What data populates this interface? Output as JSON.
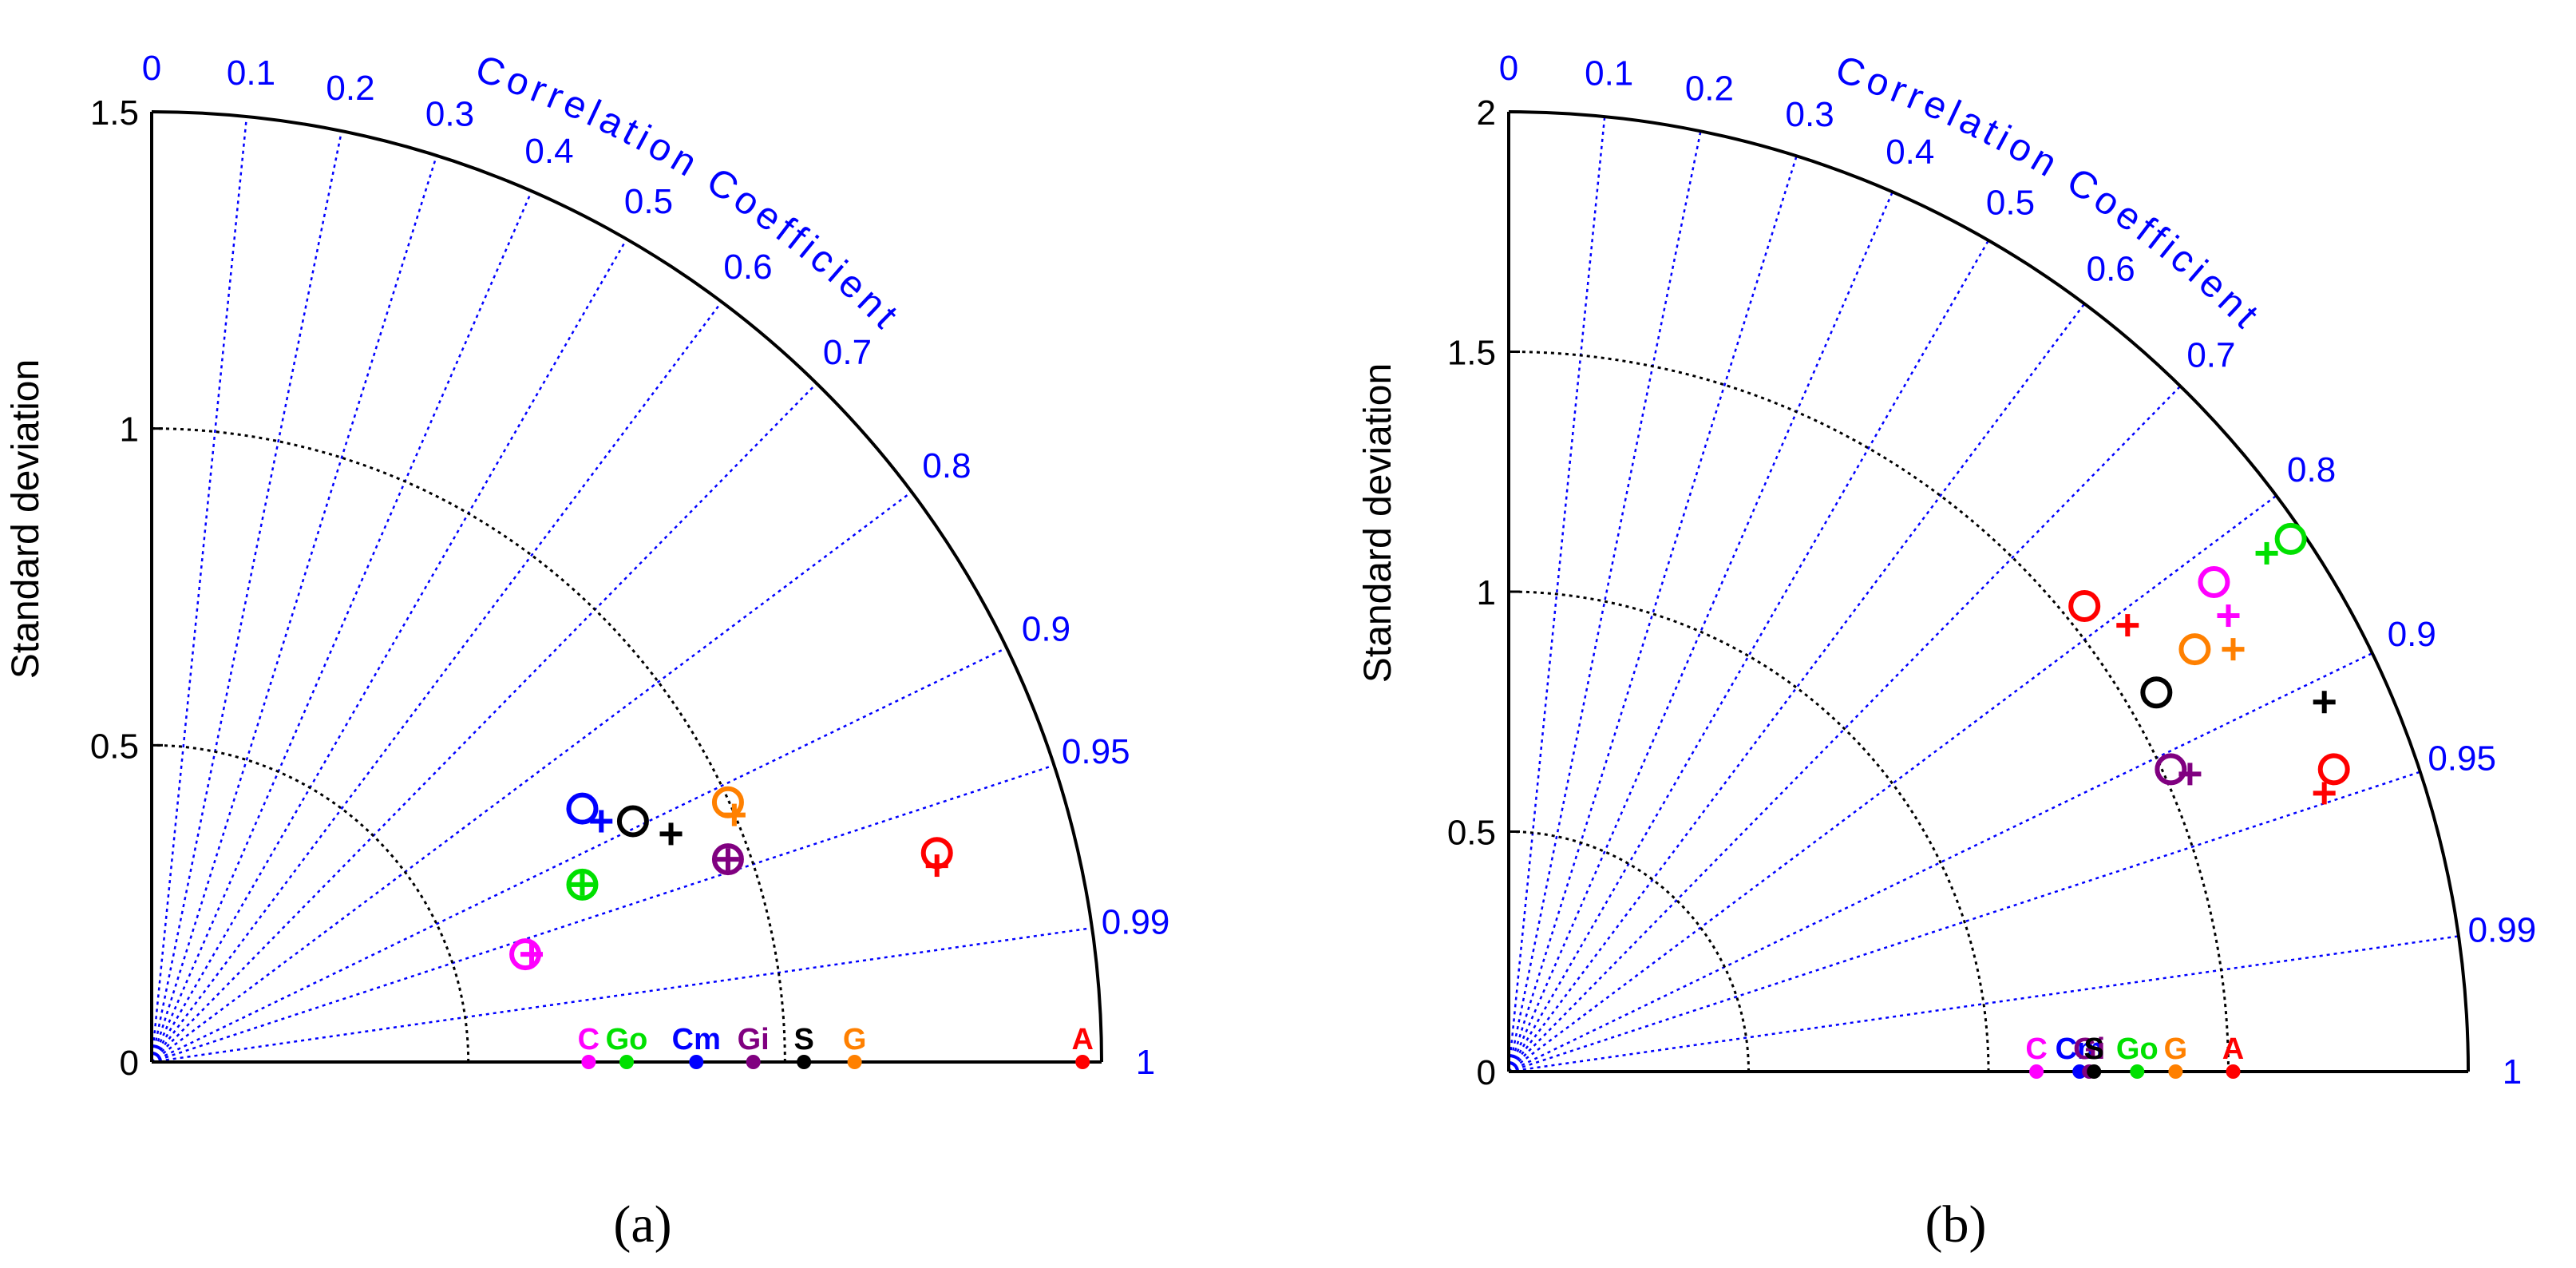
{
  "chart_data": [
    {
      "type": "taylor",
      "panel_label": "(a)",
      "ylabel": "Standard deviation",
      "correlation_label": "Correlation Coefficient",
      "std_max": 1.5,
      "std_ticks": [
        "0",
        "0.5",
        "1",
        "1.5"
      ],
      "std_tick_values": [
        0,
        0.5,
        1,
        1.5
      ],
      "rms_arcs": [
        0.5,
        1.0
      ],
      "corr_ticks": [
        0,
        0.1,
        0.2,
        0.3,
        0.4,
        0.5,
        0.6,
        0.7,
        0.8,
        0.9,
        0.95,
        0.99,
        1
      ],
      "corr_tick_labels": [
        "0",
        "0.1",
        "0.2",
        "0.3",
        "0.4",
        "0.5",
        "0.6",
        "0.7",
        "0.8",
        "0.9",
        "0.95",
        "0.99",
        "1"
      ],
      "reference_points": [
        {
          "label": "C",
          "std": 0.69,
          "color": "#ff00ff"
        },
        {
          "label": "Go",
          "std": 0.75,
          "color": "#00e000"
        },
        {
          "label": "Cm",
          "std": 0.86,
          "color": "#0000ff"
        },
        {
          "label": "Gi",
          "std": 0.95,
          "color": "#800080"
        },
        {
          "label": "S",
          "std": 1.03,
          "color": "#000000"
        },
        {
          "label": "G",
          "std": 1.11,
          "color": "#ff8000"
        },
        {
          "label": "A",
          "std": 1.47,
          "color": "#ff0000"
        }
      ],
      "circles": [
        {
          "x": 0.68,
          "y": 0.4,
          "color": "#0000ff"
        },
        {
          "x": 0.76,
          "y": 0.38,
          "color": "#000000"
        },
        {
          "x": 0.91,
          "y": 0.41,
          "color": "#ff8000"
        },
        {
          "x": 0.91,
          "y": 0.32,
          "color": "#800080"
        },
        {
          "x": 0.68,
          "y": 0.28,
          "color": "#00e000"
        },
        {
          "x": 0.59,
          "y": 0.17,
          "color": "#ff00ff"
        },
        {
          "x": 1.24,
          "y": 0.33,
          "color": "#ff0000"
        }
      ],
      "crosses": [
        {
          "x": 0.71,
          "y": 0.38,
          "color": "#0000ff"
        },
        {
          "x": 0.82,
          "y": 0.36,
          "color": "#000000"
        },
        {
          "x": 0.92,
          "y": 0.39,
          "color": "#ff8000"
        },
        {
          "x": 0.91,
          "y": 0.32,
          "color": "#800080"
        },
        {
          "x": 0.68,
          "y": 0.28,
          "color": "#00e000"
        },
        {
          "x": 0.6,
          "y": 0.17,
          "color": "#ff00ff"
        },
        {
          "x": 1.24,
          "y": 0.31,
          "color": "#ff0000"
        }
      ]
    },
    {
      "type": "taylor",
      "panel_label": "(b)",
      "ylabel": "Standard deviation",
      "correlation_label": "Correlation Coefficient",
      "std_max": 2,
      "std_ticks": [
        "0",
        "0.5",
        "1",
        "1.5",
        "2"
      ],
      "std_tick_values": [
        0,
        0.5,
        1,
        1.5,
        2
      ],
      "rms_arcs": [
        0.5,
        1.0,
        1.5
      ],
      "corr_ticks": [
        0,
        0.1,
        0.2,
        0.3,
        0.4,
        0.5,
        0.6,
        0.7,
        0.8,
        0.9,
        0.95,
        0.99,
        1
      ],
      "corr_tick_labels": [
        "0",
        "0.1",
        "0.2",
        "0.3",
        "0.4",
        "0.5",
        "0.6",
        "0.7",
        "0.8",
        "0.9",
        "0.95",
        "0.99",
        "1"
      ],
      "reference_points": [
        {
          "label": "C",
          "std": 1.1,
          "color": "#ff00ff"
        },
        {
          "label": "Cm",
          "std": 1.19,
          "color": "#0000ff"
        },
        {
          "label": "Gi",
          "std": 1.21,
          "color": "#800080"
        },
        {
          "label": "S",
          "std": 1.22,
          "color": "#000000"
        },
        {
          "label": "Go",
          "std": 1.31,
          "color": "#00e000"
        },
        {
          "label": "G",
          "std": 1.39,
          "color": "#ff8000"
        },
        {
          "label": "A",
          "std": 1.51,
          "color": "#ff0000"
        }
      ],
      "circles": [
        {
          "x": 1.2,
          "y": 0.97,
          "color": "#ff0000"
        },
        {
          "x": 1.47,
          "y": 1.02,
          "color": "#ff00ff"
        },
        {
          "x": 1.43,
          "y": 0.88,
          "color": "#ff8000"
        },
        {
          "x": 1.35,
          "y": 0.79,
          "color": "#000000"
        },
        {
          "x": 1.38,
          "y": 0.63,
          "color": "#800080"
        },
        {
          "x": 1.63,
          "y": 1.11,
          "color": "#00e000"
        },
        {
          "x": 1.72,
          "y": 0.63,
          "color": "#ff0000"
        }
      ],
      "crosses": [
        {
          "x": 1.29,
          "y": 0.93,
          "color": "#ff0000"
        },
        {
          "x": 1.5,
          "y": 0.95,
          "color": "#ff00ff"
        },
        {
          "x": 1.51,
          "y": 0.88,
          "color": "#ff8000"
        },
        {
          "x": 1.7,
          "y": 0.77,
          "color": "#000000"
        },
        {
          "x": 1.42,
          "y": 0.62,
          "color": "#800080"
        },
        {
          "x": 1.58,
          "y": 1.08,
          "color": "#00e000"
        },
        {
          "x": 1.7,
          "y": 0.58,
          "color": "#ff0000"
        }
      ]
    }
  ]
}
